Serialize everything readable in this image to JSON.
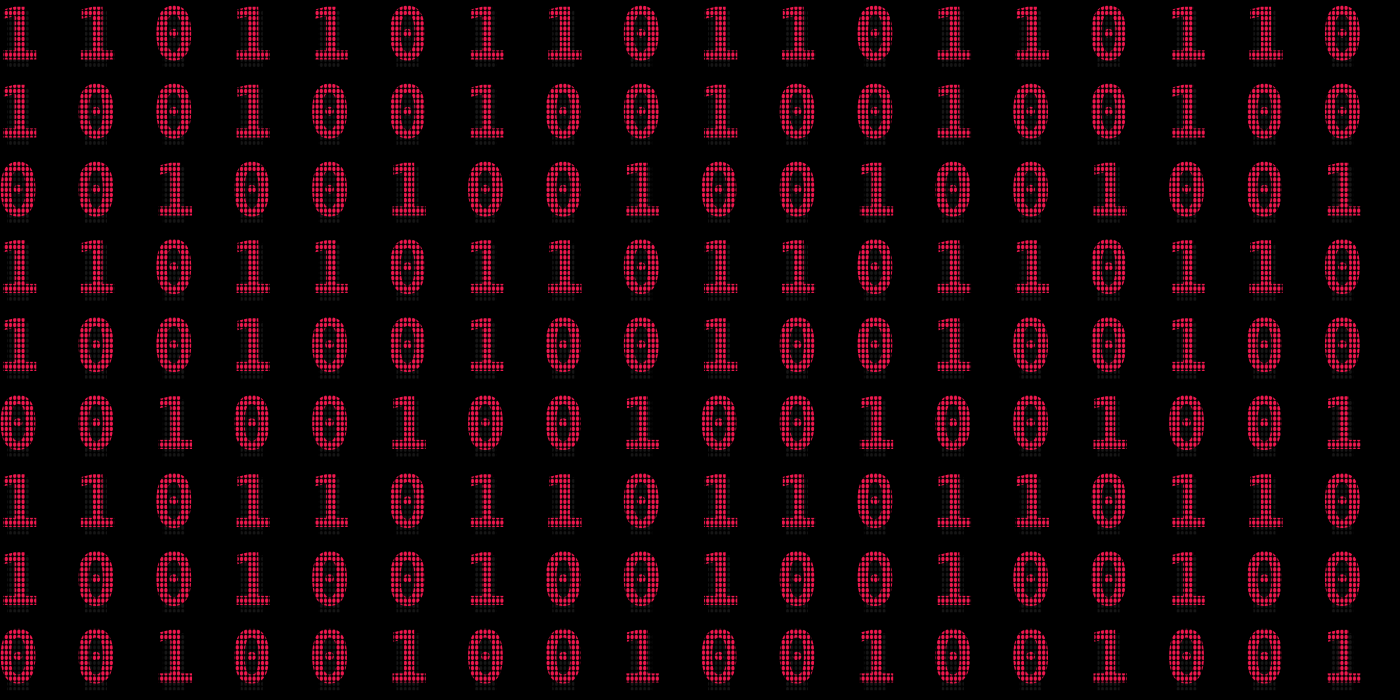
{
  "grid": {
    "rows": [
      [
        "1",
        "1",
        "0",
        "1",
        "1",
        "0",
        "1",
        "1",
        "0",
        "1",
        "1",
        "0",
        "1",
        "1",
        "0",
        "1",
        "1",
        "0"
      ],
      [
        "1",
        "0",
        "0",
        "1",
        "0",
        "0",
        "1",
        "0",
        "0",
        "1",
        "0",
        "0",
        "1",
        "0",
        "0",
        "1",
        "0",
        "0"
      ],
      [
        "0",
        "0",
        "1",
        "0",
        "0",
        "1",
        "0",
        "0",
        "1",
        "0",
        "0",
        "1",
        "0",
        "0",
        "1",
        "0",
        "0",
        "1"
      ],
      [
        "1",
        "1",
        "0",
        "1",
        "1",
        "0",
        "1",
        "1",
        "0",
        "1",
        "1",
        "0",
        "1",
        "1",
        "0",
        "1",
        "1",
        "0"
      ],
      [
        "1",
        "0",
        "0",
        "1",
        "0",
        "0",
        "1",
        "0",
        "0",
        "1",
        "0",
        "0",
        "1",
        "0",
        "0",
        "1",
        "0",
        "0"
      ],
      [
        "0",
        "0",
        "1",
        "0",
        "0",
        "1",
        "0",
        "0",
        "1",
        "0",
        "0",
        "1",
        "0",
        "0",
        "1",
        "0",
        "0",
        "1"
      ],
      [
        "1",
        "1",
        "0",
        "1",
        "1",
        "0",
        "1",
        "1",
        "0",
        "1",
        "1",
        "0",
        "1",
        "1",
        "0",
        "1",
        "1",
        "0"
      ],
      [
        "1",
        "0",
        "0",
        "1",
        "0",
        "0",
        "1",
        "0",
        "0",
        "1",
        "0",
        "0",
        "1",
        "0",
        "0",
        "1",
        "0",
        "0"
      ],
      [
        "0",
        "0",
        "1",
        "0",
        "0",
        "1",
        "0",
        "0",
        "1",
        "0",
        "0",
        "1",
        "0",
        "0",
        "1",
        "0",
        "0",
        "1"
      ]
    ]
  }
}
